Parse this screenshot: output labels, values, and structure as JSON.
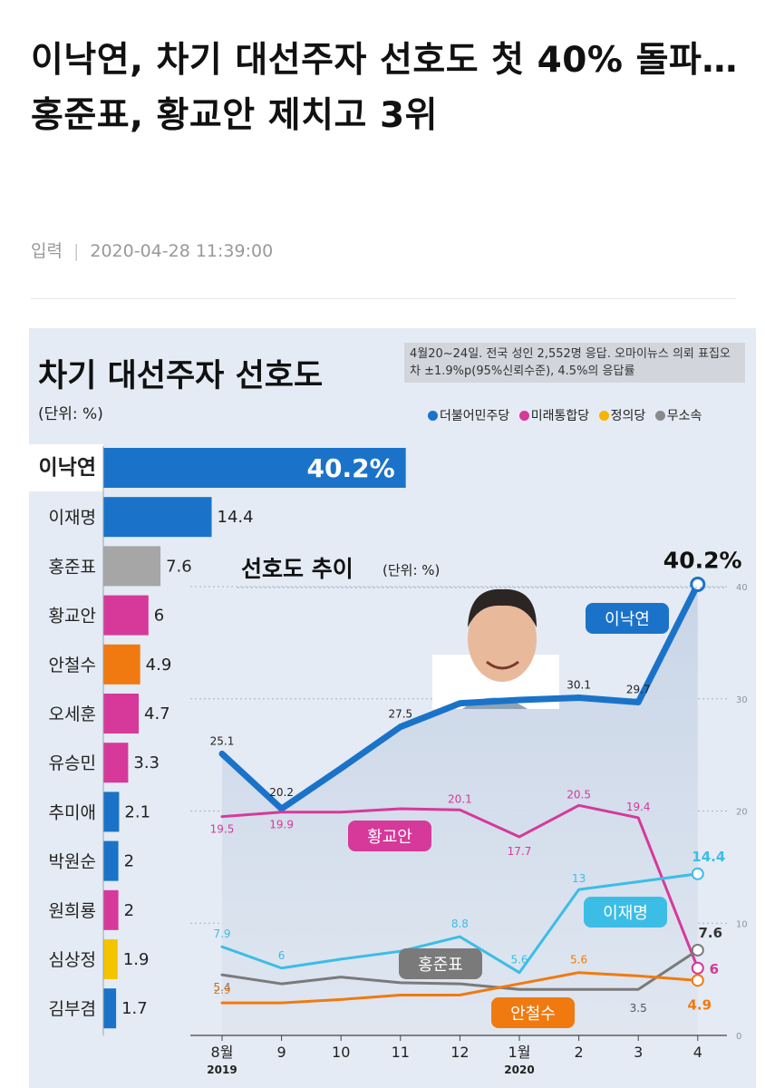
{
  "article": {
    "headline": "이낙연, 차기 대선주자 선호도 첫 40% 돌파…홍준표, 황교안 제치고 3위",
    "meta_label": "입력",
    "timestamp": "2020-04-28 11:39:00"
  },
  "graphic": {
    "title": "차기 대선주자 선호도",
    "unit": "(단위: %)",
    "note": "4월20~24일. 전국 성인 2,552명 응답. 오마이뉴스 의뢰 표집오차 ±1.9%p(95%신뢰수준), 4.5%의 응답률",
    "legend": [
      {
        "label": "더불어민주당",
        "color": "#1a73c9"
      },
      {
        "label": "미래통합당",
        "color": "#d6399a"
      },
      {
        "label": "정의당",
        "color": "#f5b400"
      },
      {
        "label": "무소속",
        "color": "#8a8a8a"
      }
    ]
  },
  "chart_data": [
    {
      "type": "bar",
      "orientation": "horizontal",
      "title": "차기 대선주자 선호도",
      "unit": "(단위: %)",
      "categories": [
        "이낙연",
        "이재명",
        "홍준표",
        "황교안",
        "안철수",
        "오세훈",
        "유승민",
        "추미애",
        "박원순",
        "원희룡",
        "심상정",
        "김부겸"
      ],
      "values": [
        40.2,
        14.4,
        7.6,
        6,
        4.9,
        4.7,
        3.3,
        2.1,
        2,
        2,
        1.9,
        1.7
      ],
      "value_labels": [
        "40.2%",
        "14.4",
        "7.6",
        "6",
        "4.9",
        "4.7",
        "3.3",
        "2.1",
        "2",
        "2",
        "1.9",
        "1.7"
      ],
      "colors": [
        "#1a73c9",
        "#1a73c9",
        "#a6a6a6",
        "#d6399a",
        "#f07a10",
        "#d6399a",
        "#d6399a",
        "#1a73c9",
        "#1a73c9",
        "#d6399a",
        "#f5c400",
        "#1a73c9"
      ]
    },
    {
      "type": "line",
      "title": "선호도 추이",
      "unit": "(단위: %)",
      "x": [
        "8월",
        "9",
        "10",
        "11",
        "12",
        "1월",
        "2",
        "3",
        "4"
      ],
      "x_sublabels": [
        "2019",
        "",
        "",
        "",
        "",
        "2020",
        "",
        "",
        ""
      ],
      "ylim": [
        0,
        40
      ],
      "yticks": [
        0,
        10,
        20,
        30,
        40
      ],
      "series": [
        {
          "name": "이낙연",
          "color": "#1a73c9",
          "values": [
            25.1,
            20.2,
            23.8,
            27.5,
            29.6,
            29.9,
            30.1,
            29.7,
            40.2
          ],
          "labels": [
            "25.1",
            "20.2",
            "",
            "27.5",
            "",
            "",
            "30.1",
            "29.7",
            "40.2%"
          ]
        },
        {
          "name": "황교안",
          "color": "#d6399a",
          "values": [
            19.5,
            19.9,
            19.9,
            20.2,
            20.1,
            17.7,
            20.5,
            19.4,
            6
          ],
          "labels": [
            "19.5",
            "19.9",
            "",
            "",
            "20.1",
            "17.7",
            "20.5",
            "19.4",
            "6"
          ]
        },
        {
          "name": "이재명",
          "color": "#3cbde6",
          "values": [
            7.9,
            6,
            6.8,
            7.5,
            8.8,
            5.6,
            13,
            13.7,
            14.4
          ],
          "labels": [
            "7.9",
            "6",
            "",
            "",
            "8.8",
            "5.6",
            "13",
            "",
            "14.4"
          ]
        },
        {
          "name": "홍준표",
          "color": "#7a7a7a",
          "values": [
            5.4,
            4.6,
            5.2,
            4.7,
            4.6,
            4.1,
            4.1,
            4.1,
            7.6
          ],
          "labels": [
            "5.4",
            "",
            "",
            "",
            "",
            "",
            "",
            "",
            "7.6"
          ]
        },
        {
          "name": "안철수",
          "color": "#f07a10",
          "values": [
            2.9,
            2.9,
            3.2,
            3.6,
            3.6,
            4.6,
            5.6,
            5.3,
            4.9
          ],
          "labels": [
            "2.9",
            "",
            "",
            "",
            "",
            "",
            "5.6",
            "",
            "4.9"
          ]
        }
      ],
      "extra_labels": [
        {
          "text": "3.5",
          "x_index": 7
        }
      ]
    }
  ]
}
